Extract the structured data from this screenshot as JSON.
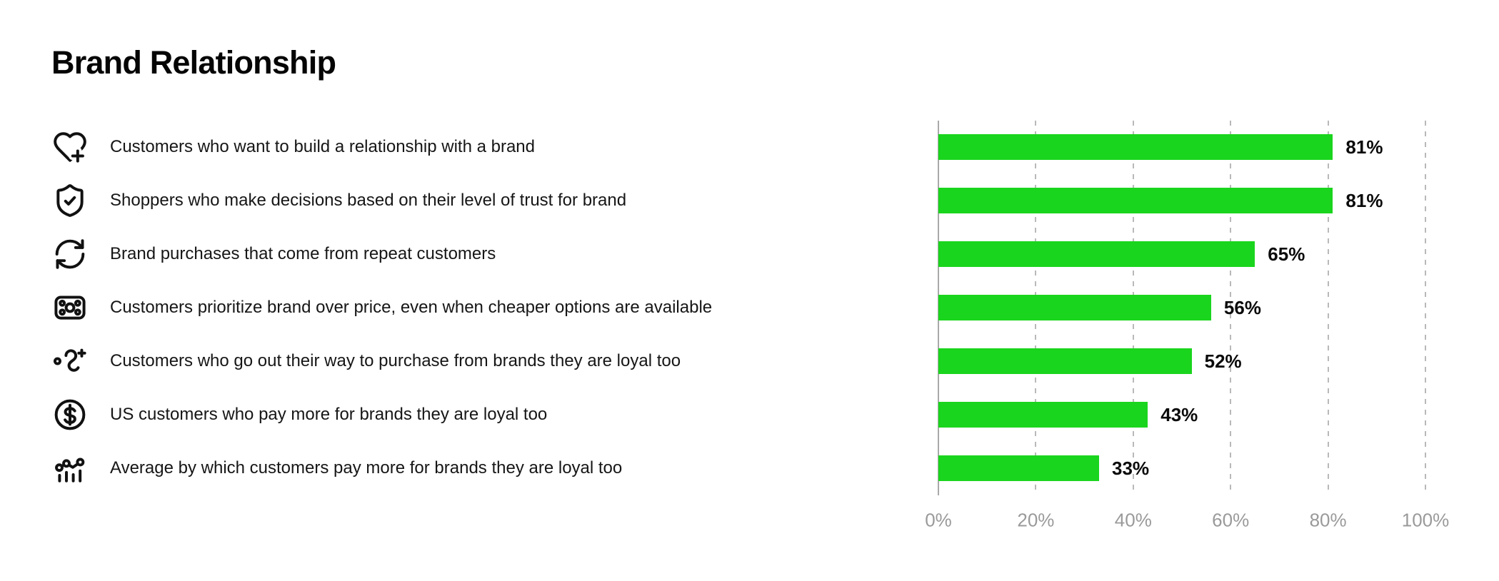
{
  "page": {
    "title": "Brand Relationship"
  },
  "chart_data": {
    "type": "bar",
    "orientation": "horizontal",
    "title": "Brand Relationship",
    "bar_color": "#1AD51D",
    "xlim": [
      0,
      100
    ],
    "grid": "vertical-dashed",
    "axis": {
      "ticks": [
        "0%",
        "20%",
        "40%",
        "60%",
        "80%",
        "100%"
      ]
    },
    "rows": [
      {
        "icon": "heart-plus-icon",
        "label": "Customers who want to build a relationship with a brand",
        "value": 81,
        "value_label": "81%"
      },
      {
        "icon": "shield-check-icon",
        "label": "Shoppers who make decisions based on their level of trust for brand",
        "value": 81,
        "value_label": "81%"
      },
      {
        "icon": "repeat-arrows-icon",
        "label": "Brand purchases that come from repeat customers",
        "value": 65,
        "value_label": "65%"
      },
      {
        "icon": "banknote-icon",
        "label": "Customers prioritize brand over price, even when cheaper options are available",
        "value": 56,
        "value_label": "56%"
      },
      {
        "icon": "route-plus-icon",
        "label": "Customers who go out their way to purchase from brands they are loyal too",
        "value": 52,
        "value_label": "52%"
      },
      {
        "icon": "dollar-circle-icon",
        "label": "US customers who pay more for brands they are loyal too",
        "value": 43,
        "value_label": "43%"
      },
      {
        "icon": "chart-dots-bars-icon",
        "label": "Average by which customers pay more for brands they are loyal too",
        "value": 33,
        "value_label": "33%"
      }
    ]
  }
}
